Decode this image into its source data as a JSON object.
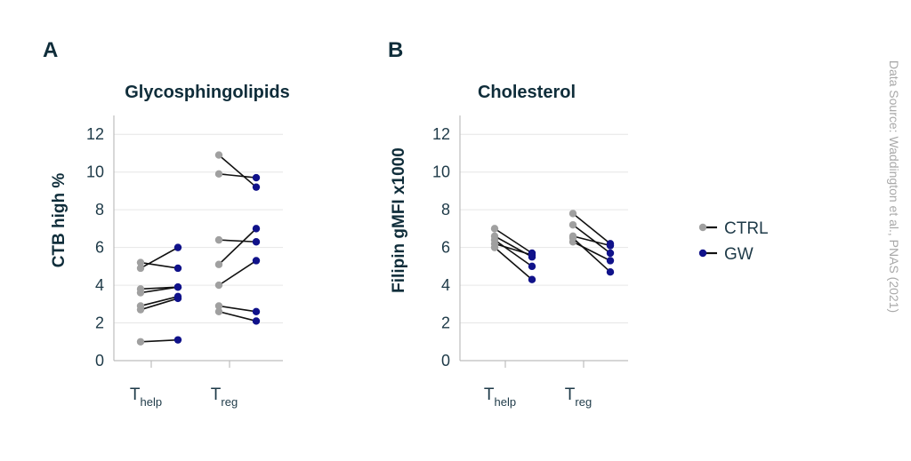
{
  "source": "Data Source: Waddington et al., PNAS (2021)",
  "colors": {
    "ctrl": "#a0a0a0",
    "gw": "#10128a",
    "line": "#111111"
  },
  "legend": [
    {
      "key": "ctrl",
      "label": "CTRL"
    },
    {
      "key": "gw",
      "label": "GW"
    }
  ],
  "chart_data": [
    {
      "type": "scatter",
      "panel_letter": "A",
      "title": "Glycosphingolipids",
      "ylabel": "CTB high %",
      "ylim": [
        0,
        13
      ],
      "yticks": [
        0,
        2,
        4,
        6,
        8,
        10,
        12
      ],
      "categories": [
        {
          "main": "T",
          "sub": "help"
        },
        {
          "main": "T",
          "sub": "reg"
        }
      ],
      "series_names": [
        "CTRL",
        "GW"
      ],
      "pairs": [
        [
          [
            5.2,
            4.9
          ],
          [
            4.9,
            6.0
          ],
          [
            3.8,
            3.9
          ],
          [
            3.6,
            3.9
          ],
          [
            2.9,
            3.4
          ],
          [
            2.7,
            3.3
          ],
          [
            1.0,
            1.1
          ]
        ],
        [
          [
            10.9,
            9.2
          ],
          [
            9.9,
            9.7
          ],
          [
            6.4,
            6.3
          ],
          [
            5.1,
            7.0
          ],
          [
            4.0,
            5.3
          ],
          [
            2.9,
            2.6
          ],
          [
            2.6,
            2.1
          ]
        ]
      ]
    },
    {
      "type": "scatter",
      "panel_letter": "B",
      "title": "Cholesterol",
      "ylabel": "Filipin gMFI x1000",
      "ylim": [
        0,
        13
      ],
      "yticks": [
        0,
        2,
        4,
        6,
        8,
        10,
        12
      ],
      "categories": [
        {
          "main": "T",
          "sub": "help"
        },
        {
          "main": "T",
          "sub": "reg"
        }
      ],
      "series_names": [
        "CTRL",
        "GW"
      ],
      "pairs": [
        [
          [
            7.0,
            5.7
          ],
          [
            6.6,
            5.5
          ],
          [
            6.4,
            5.0
          ],
          [
            6.2,
            5.6
          ],
          [
            6.0,
            4.3
          ]
        ],
        [
          [
            7.8,
            6.2
          ],
          [
            7.2,
            5.7
          ],
          [
            6.6,
            6.1
          ],
          [
            6.3,
            5.3
          ],
          [
            6.5,
            4.7
          ]
        ]
      ]
    }
  ]
}
